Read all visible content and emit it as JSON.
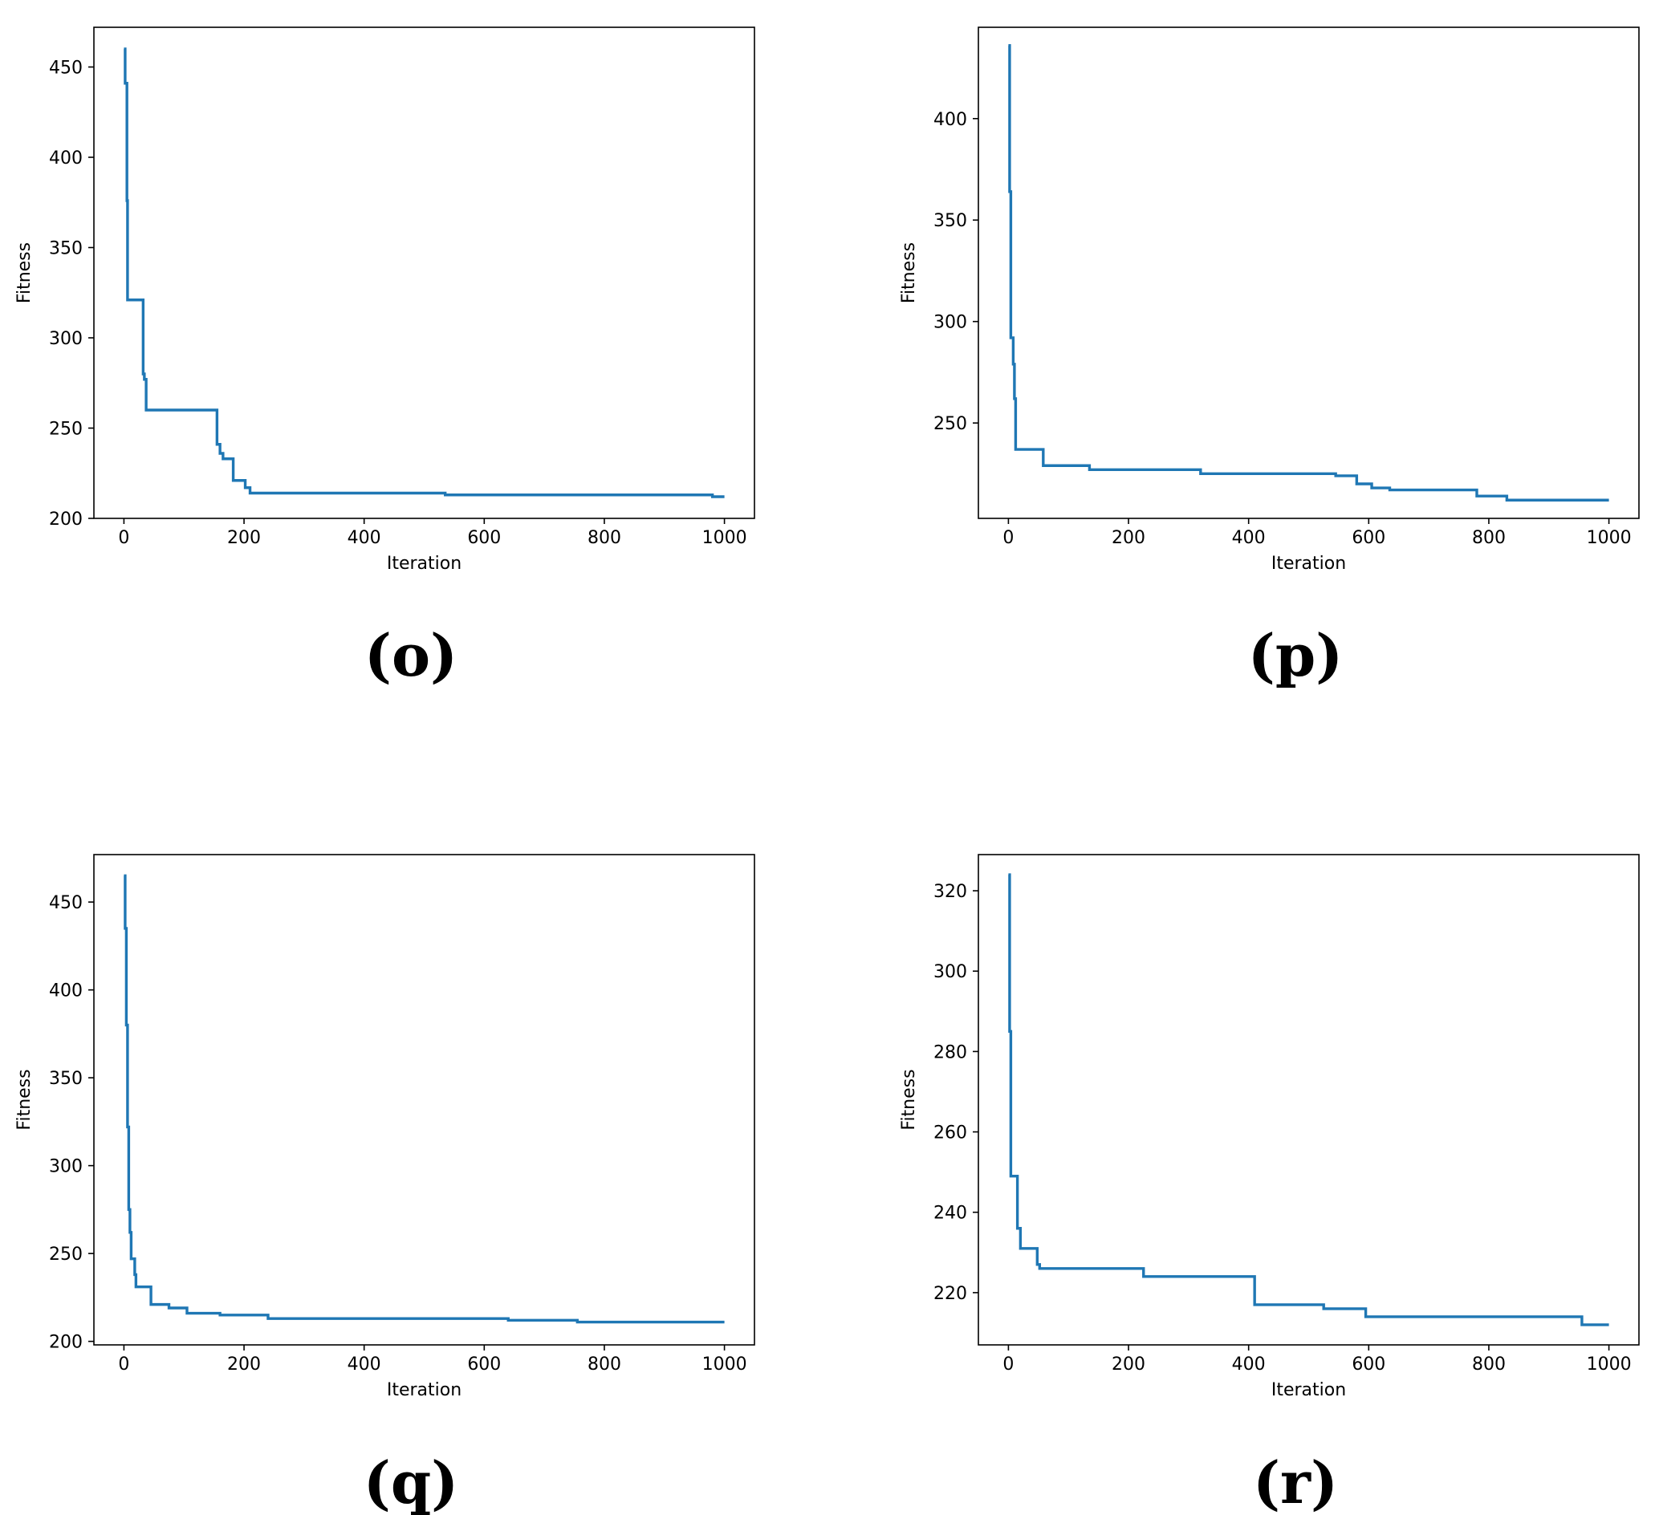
{
  "colors": {
    "line": "#1f77b4",
    "axis": "#000000",
    "background": "#ffffff"
  },
  "chart_data": [
    {
      "type": "line",
      "panel_label": "(o)",
      "xlabel": "Iteration",
      "ylabel": "Fitness",
      "xlim": [
        -50,
        1050
      ],
      "ylim": [
        200,
        472
      ],
      "xticks": [
        0,
        200,
        400,
        600,
        800,
        1000
      ],
      "yticks": [
        200,
        250,
        300,
        350,
        400,
        450
      ],
      "grid": false,
      "series": [
        {
          "x": [
            0,
            2,
            2,
            5,
            5,
            6,
            6,
            32,
            32,
            34,
            34,
            37,
            37,
            155,
            155,
            160,
            160,
            165,
            165,
            182,
            182,
            202,
            202,
            210,
            210,
            535,
            535,
            980,
            980,
            1000
          ],
          "y": [
            460,
            460,
            441,
            441,
            376,
            376,
            321,
            321,
            280,
            280,
            277,
            277,
            260,
            260,
            241,
            241,
            236,
            236,
            233,
            233,
            221,
            221,
            217,
            217,
            214,
            214,
            213,
            213,
            212,
            212
          ]
        }
      ]
    },
    {
      "type": "line",
      "panel_label": "(p)",
      "xlabel": "Iteration",
      "ylabel": "Fitness",
      "xlim": [
        -50,
        1050
      ],
      "ylim": [
        203,
        445
      ],
      "xticks": [
        0,
        200,
        400,
        600,
        800,
        1000
      ],
      "yticks": [
        250,
        300,
        350,
        400
      ],
      "grid": false,
      "series": [
        {
          "x": [
            0,
            2,
            2,
            4,
            4,
            8,
            8,
            10,
            10,
            12,
            12,
            58,
            58,
            135,
            135,
            320,
            320,
            545,
            545,
            580,
            580,
            605,
            605,
            635,
            635,
            780,
            780,
            830,
            830,
            1000
          ],
          "y": [
            436,
            436,
            364,
            364,
            292,
            292,
            279,
            279,
            262,
            262,
            237,
            237,
            229,
            229,
            227,
            227,
            225,
            225,
            224,
            224,
            220,
            220,
            218,
            218,
            217,
            217,
            214,
            214,
            212,
            212
          ]
        }
      ]
    },
    {
      "type": "line",
      "panel_label": "(q)",
      "xlabel": "Iteration",
      "ylabel": "Fitness",
      "xlim": [
        -50,
        1050
      ],
      "ylim": [
        198,
        477
      ],
      "xticks": [
        0,
        200,
        400,
        600,
        800,
        1000
      ],
      "yticks": [
        200,
        250,
        300,
        350,
        400,
        450
      ],
      "grid": false,
      "series": [
        {
          "x": [
            0,
            2,
            2,
            4,
            4,
            6,
            6,
            8,
            8,
            10,
            10,
            12,
            12,
            18,
            18,
            20,
            20,
            45,
            45,
            75,
            75,
            105,
            105,
            160,
            160,
            240,
            240,
            640,
            640,
            755,
            755,
            1000
          ],
          "y": [
            465,
            465,
            435,
            435,
            380,
            380,
            322,
            322,
            275,
            275,
            262,
            262,
            247,
            247,
            238,
            238,
            231,
            231,
            221,
            221,
            219,
            219,
            216,
            216,
            215,
            215,
            213,
            213,
            212,
            212,
            211,
            211
          ]
        }
      ]
    },
    {
      "type": "line",
      "panel_label": "(r)",
      "xlabel": "Iteration",
      "ylabel": "Fitness",
      "xlim": [
        -50,
        1050
      ],
      "ylim": [
        207,
        329
      ],
      "xticks": [
        0,
        200,
        400,
        600,
        800,
        1000
      ],
      "yticks": [
        220,
        240,
        260,
        280,
        300,
        320
      ],
      "grid": false,
      "series": [
        {
          "x": [
            0,
            2,
            2,
            4,
            4,
            15,
            15,
            20,
            20,
            48,
            48,
            52,
            52,
            225,
            225,
            410,
            410,
            525,
            525,
            595,
            595,
            955,
            955,
            1000
          ],
          "y": [
            324,
            324,
            285,
            285,
            249,
            249,
            236,
            236,
            231,
            231,
            227,
            227,
            226,
            226,
            224,
            224,
            217,
            217,
            216,
            216,
            214,
            214,
            212,
            212
          ]
        }
      ]
    }
  ]
}
